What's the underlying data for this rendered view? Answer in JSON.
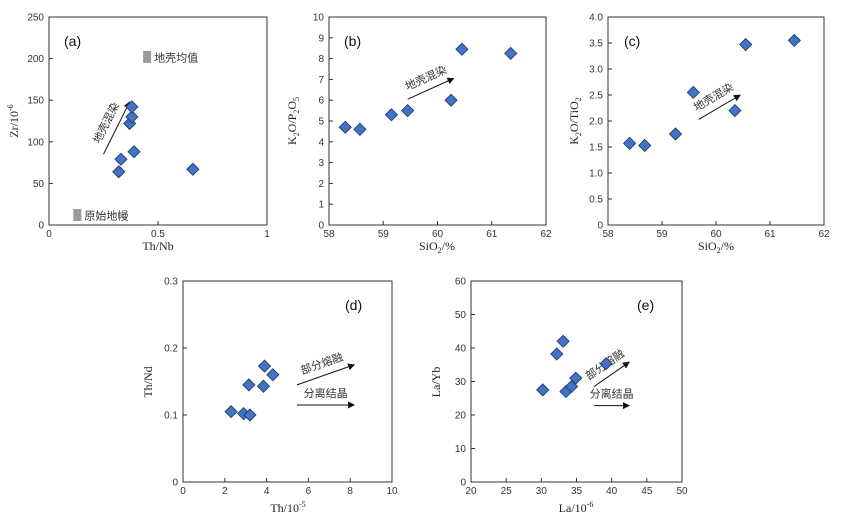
{
  "figure": {
    "sub": "-6",
    "sub2": "2",
    "sub3": "2",
    "sub4": "5",
    "sub5": "-5"
  },
  "chart_data": [
    {
      "id": "a",
      "type": "scatter",
      "panel_label": "(a)",
      "xlabel": "Th/Nb",
      "ylabel": "Zr/10",
      "xlim": [
        0,
        1
      ],
      "ylim": [
        0,
        250
      ],
      "xticks": [
        "0",
        "0.5",
        "1"
      ],
      "yticks": [
        "0",
        "50",
        "100",
        "150",
        "200",
        "250"
      ],
      "points": [
        [
          0.32,
          64
        ],
        [
          0.33,
          79
        ],
        [
          0.37,
          122
        ],
        [
          0.38,
          130
        ],
        [
          0.38,
          142
        ],
        [
          0.39,
          88
        ],
        [
          0.66,
          67
        ]
      ],
      "boxes": [
        {
          "label": "地壳均值",
          "x": 0.45,
          "y": 202
        },
        {
          "label": "原始地幔",
          "x": 0.13,
          "y": 12
        }
      ],
      "arrow": {
        "label": "地壳混染",
        "from": [
          0.25,
          85
        ],
        "to": [
          0.37,
          148
        ]
      }
    },
    {
      "id": "b",
      "type": "scatter",
      "panel_label": "(b)",
      "xlabel": "SiO",
      "ylabel": "K",
      "xlim": [
        58,
        62
      ],
      "ylim": [
        0,
        10
      ],
      "xticks": [
        "58",
        "59",
        "60",
        "61",
        "62"
      ],
      "yticks": [
        "0",
        "1",
        "2",
        "3",
        "4",
        "5",
        "6",
        "7",
        "8",
        "9",
        "10"
      ],
      "points": [
        [
          58.3,
          4.7
        ],
        [
          58.57,
          4.6
        ],
        [
          59.15,
          5.3
        ],
        [
          59.45,
          5.5
        ],
        [
          60.25,
          6.0
        ],
        [
          60.45,
          8.45
        ],
        [
          61.35,
          8.25
        ]
      ],
      "arrow": {
        "label": "地壳混染",
        "from": [
          59.45,
          6.05
        ],
        "to": [
          60.3,
          7.05
        ]
      }
    },
    {
      "id": "c",
      "type": "scatter",
      "panel_label": "(c)",
      "xlabel": "SiO",
      "ylabel": "K",
      "xlim": [
        58,
        62
      ],
      "ylim": [
        0,
        4
      ],
      "xticks": [
        "58",
        "59",
        "60",
        "61",
        "62"
      ],
      "yticks": [
        "0",
        "0.5",
        "1.0",
        "1.5",
        "2.0",
        "2.5",
        "3.0",
        "3.5",
        "4.0"
      ],
      "points": [
        [
          58.4,
          1.57
        ],
        [
          58.68,
          1.53
        ],
        [
          59.25,
          1.75
        ],
        [
          59.58,
          2.55
        ],
        [
          60.35,
          2.2
        ],
        [
          60.55,
          3.47
        ],
        [
          61.45,
          3.55
        ]
      ],
      "arrow": {
        "label": "地壳混染",
        "from": [
          59.68,
          2.03
        ],
        "to": [
          60.45,
          2.5
        ]
      }
    },
    {
      "id": "d",
      "type": "scatter",
      "panel_label": "(d)",
      "xlabel": "Th/10",
      "ylabel": "Th/Nd",
      "xlim": [
        0,
        10
      ],
      "ylim": [
        0,
        0.3
      ],
      "xticks": [
        "0",
        "2",
        "4",
        "6",
        "8",
        "10"
      ],
      "yticks": [
        "0",
        "0.1",
        "0.2",
        "0.3"
      ],
      "points": [
        [
          2.3,
          0.105
        ],
        [
          2.9,
          0.102
        ],
        [
          3.2,
          0.1
        ],
        [
          3.15,
          0.145
        ],
        [
          3.85,
          0.143
        ],
        [
          3.9,
          0.173
        ],
        [
          4.3,
          0.16
        ]
      ],
      "arrows": [
        {
          "label": "部分熔融",
          "from": [
            5.45,
            0.145
          ],
          "to": [
            8.2,
            0.175
          ]
        },
        {
          "label": "分离结晶",
          "from": [
            5.45,
            0.115
          ],
          "to": [
            8.2,
            0.115
          ]
        }
      ]
    },
    {
      "id": "e",
      "type": "scatter",
      "panel_label": "(e)",
      "xlabel": "La/10",
      "ylabel": "La/Yb",
      "xlim": [
        20,
        50
      ],
      "ylim": [
        0,
        60
      ],
      "xticks": [
        "20",
        "25",
        "30",
        "35",
        "40",
        "45",
        "50"
      ],
      "yticks": [
        "0",
        "10",
        "20",
        "30",
        "40",
        "50",
        "60"
      ],
      "points": [
        [
          30.2,
          27.5
        ],
        [
          32.2,
          38.2
        ],
        [
          33.1,
          42
        ],
        [
          33.5,
          27
        ],
        [
          34.3,
          28.5
        ],
        [
          34.9,
          31
        ],
        [
          39.2,
          35.3
        ]
      ],
      "arrows": [
        {
          "label": "部分熔融",
          "from": [
            37.5,
            28.5
          ],
          "to": [
            42.5,
            35.8
          ]
        },
        {
          "label": "分离结晶",
          "from": [
            37.5,
            22.8
          ],
          "to": [
            42.5,
            22.8
          ]
        }
      ]
    }
  ]
}
